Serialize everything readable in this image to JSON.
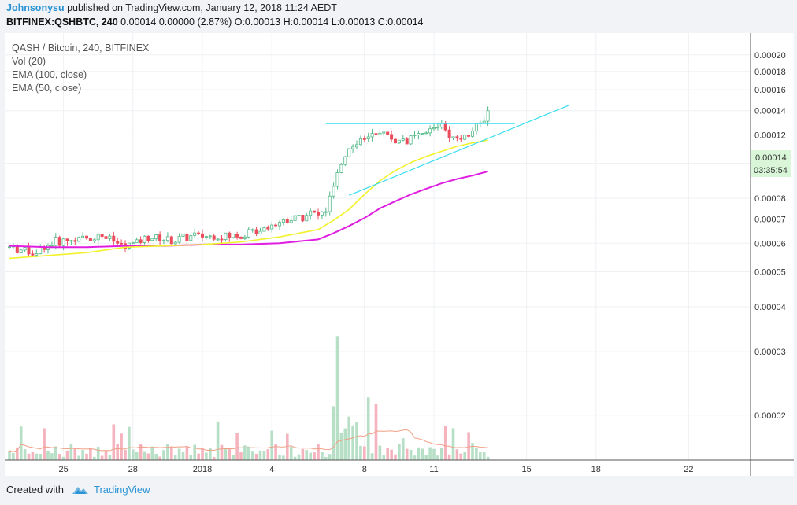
{
  "header": {
    "author": "Johnsonysu",
    "published_text": " published on TradingView.com, January 12, 2018 11:24 AEDT",
    "symbol": "BITFINEX:QSHBTC, 240",
    "ohlc_text": " 0.00014 0.00000 (2.87%) O:0.00013 H:0.00014 L:0.00013 C:0.00014"
  },
  "legend": [
    "QASH / Bitcoin, 240, BITFINEX",
    "Vol (20)",
    "EMA (100, close)",
    "EMA (50, close)"
  ],
  "price_badge": {
    "price": "0.00014",
    "countdown": "03:35:54",
    "color": "#d9f7d8"
  },
  "footer": {
    "created_with": "Created with",
    "brand": "TradingView",
    "logo_icon": "tradingview-logo-icon"
  },
  "colors": {
    "up": "#53b987",
    "down": "#eb4d5c",
    "ema100": "#e01ee0",
    "ema50": "#f2f22a",
    "trendline": "#36dcee",
    "vol_up": "#b6dfc6",
    "vol_down": "#f5b3be",
    "vol_ma": "#f0a085"
  },
  "chart_data": {
    "type": "candlestick",
    "title": "QASH / Bitcoin, 240, BITFINEX",
    "y_scale": "log",
    "ylim": [
      1.5e-05,
      0.00023
    ],
    "y_ticks": [
      "0.00020",
      "0.00018",
      "0.00016",
      "0.00014",
      "0.00012",
      "0.00010",
      "0.00008",
      "0.00007",
      "0.00006",
      "0.00005",
      "0.00004",
      "0.00003",
      "0.00002"
    ],
    "y_tick_values": [
      0.0002,
      0.00018,
      0.00016,
      0.00014,
      0.00012,
      0.0001,
      8e-05,
      7e-05,
      6e-05,
      5e-05,
      4e-05,
      3e-05,
      2e-05
    ],
    "x_ticks": [
      "25",
      "28",
      "2018",
      "4",
      "8",
      "11",
      "15",
      "18",
      "22"
    ],
    "x_tick_bars": [
      14,
      32,
      50,
      68,
      92,
      110,
      134,
      152,
      176
    ],
    "grid": true,
    "price_path": [
      [
        0,
        5.85e-05
      ],
      [
        6,
        5.65e-05
      ],
      [
        12,
        6.05e-05
      ],
      [
        18,
        6.15e-05
      ],
      [
        24,
        6.3e-05
      ],
      [
        30,
        5.85e-05
      ],
      [
        36,
        6.25e-05
      ],
      [
        42,
        6.1e-05
      ],
      [
        48,
        6.3e-05
      ],
      [
        54,
        6.25e-05
      ],
      [
        60,
        6.3e-05
      ],
      [
        66,
        6.65e-05
      ],
      [
        70,
        6.9e-05
      ],
      [
        74,
        7.05e-05
      ],
      [
        78,
        7.3e-05
      ],
      [
        80,
        7.15e-05
      ],
      [
        82,
        7.4e-05
      ],
      [
        84,
        8.6e-05
      ],
      [
        86,
        9.95e-05
      ],
      [
        88,
        0.000112
      ],
      [
        92,
        0.000118
      ],
      [
        96,
        0.000123
      ],
      [
        100,
        0.000115
      ],
      [
        104,
        0.000117
      ],
      [
        108,
        0.000121
      ],
      [
        112,
        0.00013
      ],
      [
        115,
        0.0001175
      ],
      [
        118,
        0.0001195
      ],
      [
        120,
        0.000123
      ],
      [
        122,
        0.000128
      ],
      [
        124,
        0.000138
      ]
    ],
    "ema50": [
      [
        0,
        5.45e-05
      ],
      [
        10,
        5.55e-05
      ],
      [
        20,
        5.65e-05
      ],
      [
        30,
        5.85e-05
      ],
      [
        40,
        5.9e-05
      ],
      [
        50,
        5.95e-05
      ],
      [
        60,
        6.05e-05
      ],
      [
        70,
        6.25e-05
      ],
      [
        80,
        6.55e-05
      ],
      [
        84,
        6.95e-05
      ],
      [
        88,
        7.45e-05
      ],
      [
        92,
        8.2e-05
      ],
      [
        96,
        8.95e-05
      ],
      [
        100,
        9.55e-05
      ],
      [
        104,
        0.0001005
      ],
      [
        108,
        0.0001045
      ],
      [
        112,
        0.000108
      ],
      [
        116,
        0.0001115
      ],
      [
        120,
        0.000114
      ],
      [
        124,
        0.000116
      ]
    ],
    "ema100": [
      [
        0,
        5.9e-05
      ],
      [
        10,
        5.85e-05
      ],
      [
        20,
        5.85e-05
      ],
      [
        30,
        5.9e-05
      ],
      [
        40,
        5.9e-05
      ],
      [
        50,
        5.95e-05
      ],
      [
        60,
        5.95e-05
      ],
      [
        70,
        6e-05
      ],
      [
        80,
        6.15e-05
      ],
      [
        84,
        6.4e-05
      ],
      [
        88,
        6.7e-05
      ],
      [
        92,
        7.05e-05
      ],
      [
        96,
        7.5e-05
      ],
      [
        100,
        7.85e-05
      ],
      [
        104,
        8.2e-05
      ],
      [
        108,
        8.5e-05
      ],
      [
        112,
        8.8e-05
      ],
      [
        116,
        9.05e-05
      ],
      [
        120,
        9.25e-05
      ],
      [
        124,
        9.5e-05
      ]
    ],
    "horizontal_line": {
      "price": 0.000129,
      "from_bar": 82,
      "to_bar": 131
    },
    "trendline": {
      "from": [
        88,
        8.15e-05
      ],
      "to": [
        145,
        0.000145
      ]
    }
  }
}
